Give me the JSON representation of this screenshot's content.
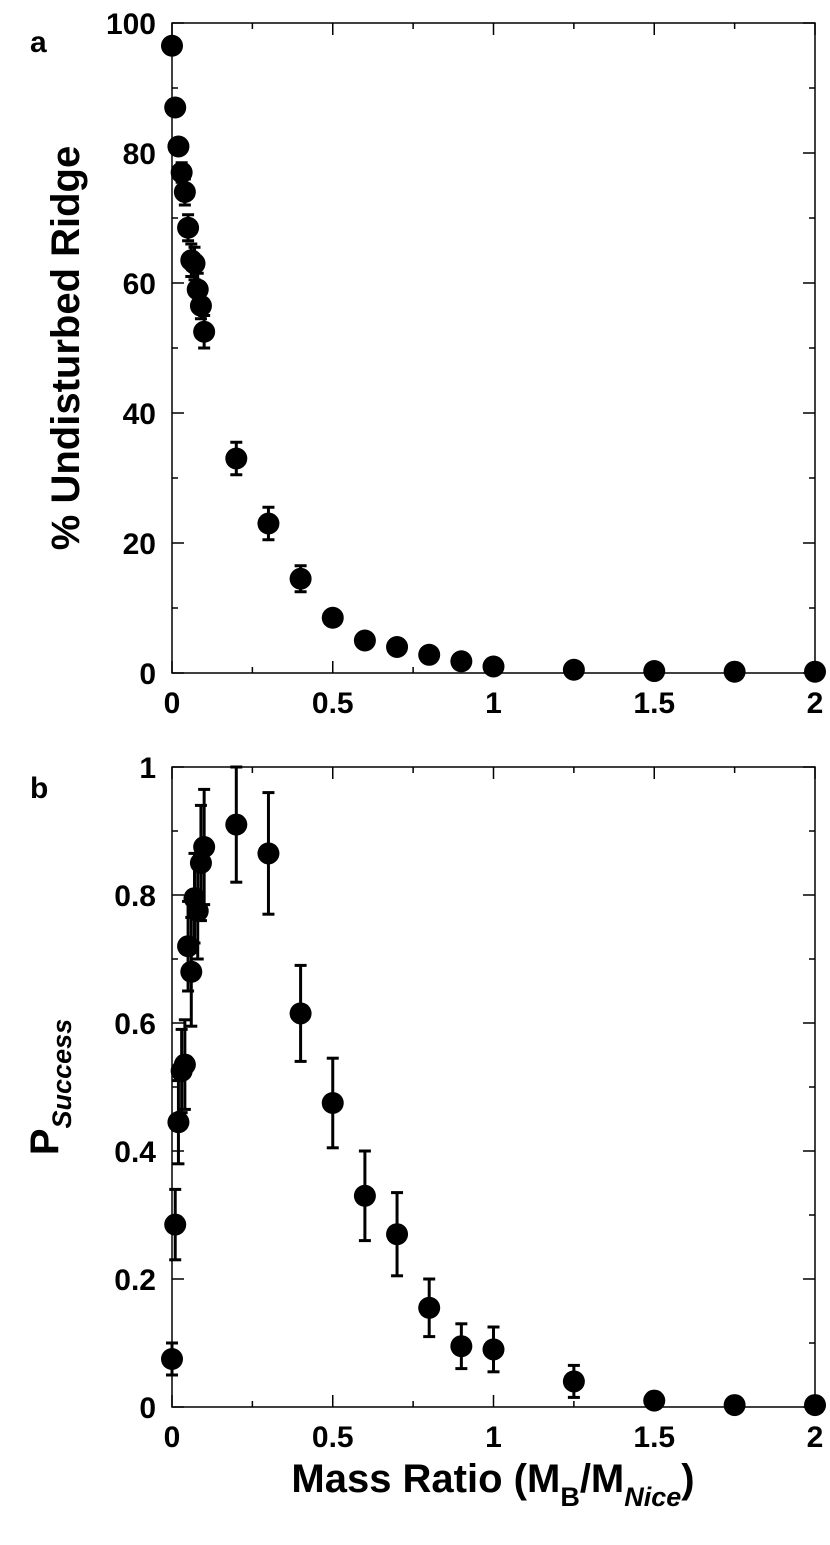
{
  "chart_data": [
    {
      "type": "scatter",
      "panel_label": "a",
      "ylabel": "% Undisturbed Ridge",
      "xlim": [
        0,
        2
      ],
      "ylim": [
        0,
        100
      ],
      "x_ticks": [
        "0",
        "0.5",
        "1",
        "1.5",
        "2"
      ],
      "y_ticks": [
        "0",
        "20",
        "40",
        "60",
        "80",
        "100"
      ],
      "grid": false,
      "points": [
        {
          "x": 0.0,
          "y": 96.5,
          "err": 0
        },
        {
          "x": 0.01,
          "y": 87.0,
          "err": 0
        },
        {
          "x": 0.02,
          "y": 81.0,
          "err": 0
        },
        {
          "x": 0.03,
          "y": 77.0,
          "err": 1.5
        },
        {
          "x": 0.04,
          "y": 74.0,
          "err": 2.0
        },
        {
          "x": 0.05,
          "y": 68.5,
          "err": 2.0
        },
        {
          "x": 0.06,
          "y": 63.5,
          "err": 2.5
        },
        {
          "x": 0.07,
          "y": 63.0,
          "err": 2.5
        },
        {
          "x": 0.08,
          "y": 59.0,
          "err": 2.5
        },
        {
          "x": 0.09,
          "y": 56.5,
          "err": 2.0
        },
        {
          "x": 0.1,
          "y": 52.5,
          "err": 2.5
        },
        {
          "x": 0.2,
          "y": 33.0,
          "err": 2.5
        },
        {
          "x": 0.3,
          "y": 23.0,
          "err": 2.5
        },
        {
          "x": 0.4,
          "y": 14.5,
          "err": 2.0
        },
        {
          "x": 0.5,
          "y": 8.5,
          "err": 0
        },
        {
          "x": 0.6,
          "y": 5.0,
          "err": 0
        },
        {
          "x": 0.7,
          "y": 4.0,
          "err": 0
        },
        {
          "x": 0.8,
          "y": 2.8,
          "err": 0
        },
        {
          "x": 0.9,
          "y": 1.8,
          "err": 0
        },
        {
          "x": 1.0,
          "y": 1.0,
          "err": 0
        },
        {
          "x": 1.25,
          "y": 0.5,
          "err": 0
        },
        {
          "x": 1.5,
          "y": 0.3,
          "err": 0
        },
        {
          "x": 1.75,
          "y": 0.2,
          "err": 0
        },
        {
          "x": 2.0,
          "y": 0.2,
          "err": 0
        }
      ]
    },
    {
      "type": "scatter",
      "panel_label": "b",
      "ylabel_main": "P",
      "ylabel_sub": "Success",
      "xlabel_main": "Mass Ratio (M",
      "xlabel_sub1": "B",
      "xlabel_mid": "/M",
      "xlabel_sub2": "Nice",
      "xlabel_end": ")",
      "xlim": [
        0,
        2
      ],
      "ylim": [
        0,
        1
      ],
      "x_ticks": [
        "0",
        "0.5",
        "1",
        "1.5",
        "2"
      ],
      "y_ticks": [
        "0",
        "0.2",
        "0.4",
        "0.6",
        "0.8",
        "1"
      ],
      "grid": false,
      "points": [
        {
          "x": 0.0,
          "y": 0.075,
          "err": 0.025
        },
        {
          "x": 0.01,
          "y": 0.285,
          "err": 0.055
        },
        {
          "x": 0.02,
          "y": 0.445,
          "err": 0.065
        },
        {
          "x": 0.03,
          "y": 0.525,
          "err": 0.065
        },
        {
          "x": 0.04,
          "y": 0.535,
          "err": 0.07
        },
        {
          "x": 0.05,
          "y": 0.72,
          "err": 0.07
        },
        {
          "x": 0.06,
          "y": 0.68,
          "err": 0.085
        },
        {
          "x": 0.07,
          "y": 0.795,
          "err": 0.07
        },
        {
          "x": 0.08,
          "y": 0.775,
          "err": 0.075
        },
        {
          "x": 0.09,
          "y": 0.85,
          "err": 0.09
        },
        {
          "x": 0.1,
          "y": 0.875,
          "err": 0.09
        },
        {
          "x": 0.2,
          "y": 0.91,
          "err": 0.09
        },
        {
          "x": 0.3,
          "y": 0.865,
          "err": 0.095
        },
        {
          "x": 0.4,
          "y": 0.615,
          "err": 0.075
        },
        {
          "x": 0.5,
          "y": 0.475,
          "err": 0.07
        },
        {
          "x": 0.6,
          "y": 0.33,
          "err": 0.07
        },
        {
          "x": 0.7,
          "y": 0.27,
          "err": 0.065
        },
        {
          "x": 0.8,
          "y": 0.155,
          "err": 0.045
        },
        {
          "x": 0.9,
          "y": 0.095,
          "err": 0.035
        },
        {
          "x": 1.0,
          "y": 0.09,
          "err": 0.035
        },
        {
          "x": 1.25,
          "y": 0.04,
          "err": 0.025
        },
        {
          "x": 1.5,
          "y": 0.01,
          "err": 0
        },
        {
          "x": 1.75,
          "y": 0.003,
          "err": 0
        },
        {
          "x": 2.0,
          "y": 0.003,
          "err": 0
        }
      ]
    }
  ]
}
